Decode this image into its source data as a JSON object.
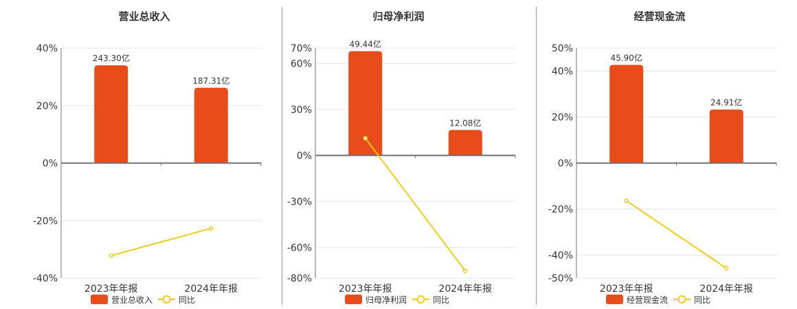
{
  "colors": {
    "bar": "#E84C1B",
    "line": "#F2CA19",
    "axis": "#6E7079",
    "grid": "#E0E6F1",
    "text": "#333333",
    "divider": "#999999"
  },
  "chart_data": [
    {
      "type": "bar+line",
      "title": "营业总收入",
      "categories": [
        "2023年年报",
        "2024年年报"
      ],
      "series": [
        {
          "name": "营业总收入",
          "type": "bar",
          "values": [
            34.0,
            26.2
          ],
          "labels": [
            "243.30亿",
            "187.31亿"
          ]
        },
        {
          "name": "同比",
          "type": "line",
          "values": [
            -32.2,
            -22.7
          ]
        }
      ],
      "yticks": [
        40,
        20,
        0,
        -20,
        -40
      ],
      "ytick_labels": [
        "40%",
        "20%",
        "0%",
        "-20%",
        "-40%"
      ],
      "ylim": [
        -40,
        40
      ],
      "grid": true,
      "legend": [
        "营业总收入",
        "同比"
      ],
      "legend_position": "bottom"
    },
    {
      "type": "bar+line",
      "title": "归母净利润",
      "categories": [
        "2023年年报",
        "2024年年报"
      ],
      "series": [
        {
          "name": "归母净利润",
          "type": "bar",
          "values": [
            68.0,
            16.6
          ],
          "labels": [
            "49.44亿",
            "12.08亿"
          ]
        },
        {
          "name": "同比",
          "type": "line",
          "values": [
            11.2,
            -75.3
          ]
        }
      ],
      "yticks": [
        70,
        60,
        30,
        0,
        -30,
        -60,
        -80
      ],
      "ytick_labels": [
        "70%",
        "60%",
        "30%",
        "0%",
        "-30%",
        "-60%",
        "-80%"
      ],
      "ylim": [
        -80,
        70
      ],
      "grid": true,
      "legend": [
        "归母净利润",
        "同比"
      ],
      "legend_position": "bottom"
    },
    {
      "type": "bar+line",
      "title": "经营现金流",
      "categories": [
        "2023年年报",
        "2024年年报"
      ],
      "series": [
        {
          "name": "经营现金流",
          "type": "bar",
          "values": [
            42.7,
            23.3
          ],
          "labels": [
            "45.90亿",
            "24.91亿"
          ]
        },
        {
          "name": "同比",
          "type": "line",
          "values": [
            -16.4,
            -45.7
          ]
        }
      ],
      "yticks": [
        50,
        40,
        20,
        0,
        -20,
        -40,
        -50
      ],
      "ytick_labels": [
        "50%",
        "40%",
        "20%",
        "0%",
        "-20%",
        "-40%",
        "-50%"
      ],
      "ylim": [
        -50,
        50
      ],
      "grid": true,
      "legend": [
        "经营现金流",
        "同比"
      ],
      "legend_position": "bottom"
    }
  ]
}
